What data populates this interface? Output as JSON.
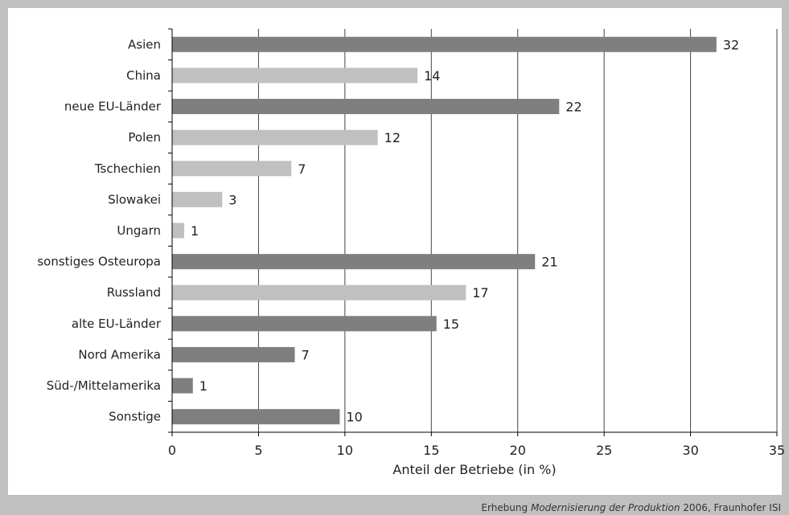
{
  "chart_data": {
    "type": "bar",
    "orientation": "horizontal",
    "categories": [
      "Asien",
      "China",
      "neue EU-Länder",
      "Polen",
      "Tschechien",
      "Slowakei",
      "Ungarn",
      "sonstiges Osteuropa",
      "Russland",
      "alte EU-Länder",
      "Nord Amerika",
      "Süd-/Mittelamerika",
      "Sonstige"
    ],
    "values": [
      31.5,
      14.2,
      22.4,
      11.9,
      6.9,
      2.9,
      0.7,
      21.0,
      17.0,
      15.3,
      7.1,
      1.2,
      9.7
    ],
    "data_labels": [
      "32",
      "14",
      "22",
      "12",
      "7",
      "3",
      "1",
      "21",
      "17",
      "15",
      "7",
      "1",
      "10"
    ],
    "bar_style": [
      "dark",
      "light",
      "dark",
      "light",
      "light",
      "light",
      "light",
      "dark",
      "light",
      "dark",
      "dark",
      "dark",
      "dark"
    ],
    "colors": {
      "dark": "#7f7f7f",
      "light": "#c0c0c0",
      "grid": "#444444",
      "axis": "#000000"
    },
    "xlabel": "Anteil der Betriebe (in %)",
    "xlim": [
      0,
      35
    ],
    "xticks": [
      0,
      5,
      10,
      15,
      20,
      25,
      30,
      35
    ],
    "grid": "vertical",
    "source": {
      "prefix": "Erhebung ",
      "italic": "Modernisierung der Produktion",
      "suffix": " 2006, Fraunhofer ISI"
    }
  }
}
